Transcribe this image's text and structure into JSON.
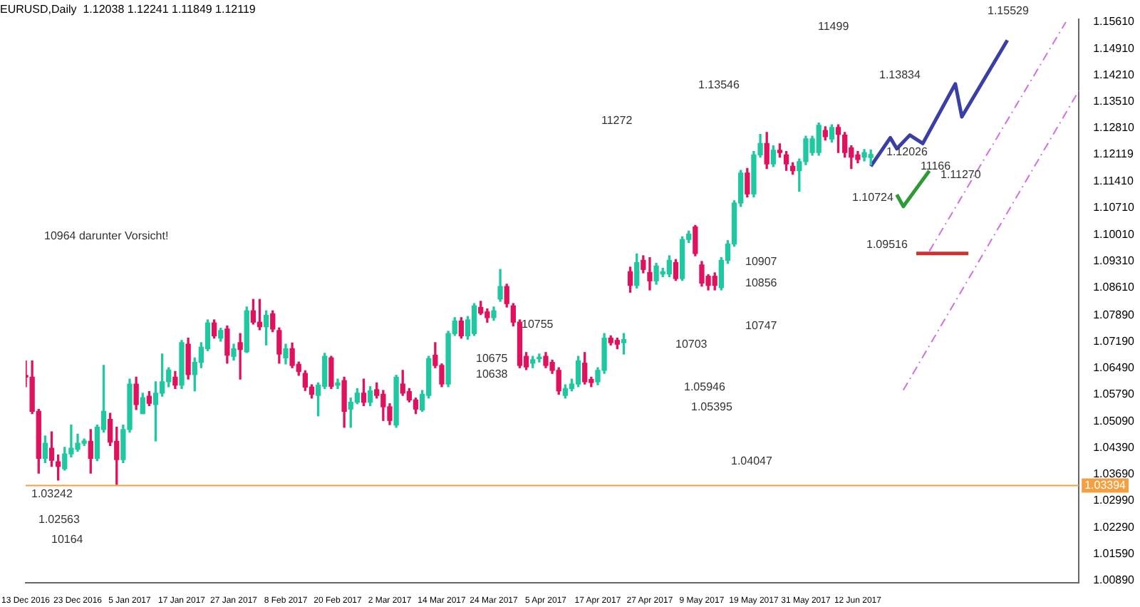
{
  "chart_data": {
    "type": "candlestick",
    "title": "EURUSD,Daily  1.12038 1.12241 1.11849 1.12119",
    "categories": [
      "13 Dec 2016",
      null,
      null,
      null,
      null,
      null,
      null,
      null,
      "23 Dec 2016",
      null,
      null,
      null,
      null,
      null,
      null,
      null,
      "5 Jan 2017",
      null,
      null,
      null,
      null,
      null,
      null,
      null,
      "17 Jan 2017",
      null,
      null,
      null,
      null,
      null,
      null,
      null,
      "27 Jan 2017",
      null,
      null,
      null,
      null,
      null,
      null,
      null,
      "8 Feb 2017",
      null,
      null,
      null,
      null,
      null,
      null,
      null,
      "20 Feb 2017",
      null,
      null,
      null,
      null,
      null,
      null,
      null,
      "2 Mar 2017",
      null,
      null,
      null,
      null,
      null,
      null,
      null,
      "14 Mar 2017",
      null,
      null,
      null,
      null,
      null,
      null,
      null,
      "24 Mar 2017",
      null,
      null,
      null,
      null,
      null,
      null,
      null,
      "5 Apr 2017",
      null,
      null,
      null,
      null,
      null,
      null,
      null,
      "17 Apr 2017",
      null,
      null,
      null,
      null,
      null,
      null,
      null,
      "27 Apr 2017",
      null,
      null,
      null,
      null,
      null,
      null,
      null,
      "9 May 2017",
      null,
      null,
      null,
      null,
      null,
      null,
      null,
      "19 May 2017",
      null,
      null,
      null,
      null,
      null,
      null,
      null,
      "31 May 2017",
      null,
      null,
      null,
      null,
      null,
      null,
      null,
      "12 Jun 2017",
      null,
      null,
      null,
      null,
      null,
      null,
      null,
      null,
      null,
      null,
      null,
      null,
      null,
      null,
      null,
      null,
      null,
      null,
      null,
      null,
      null,
      null,
      null,
      null,
      null,
      null,
      null,
      null,
      null,
      null,
      null,
      null,
      null,
      null
    ],
    "colors": [
      "#e0115f",
      "#e0115f",
      "#e0115f",
      "#1fc8a0",
      "#e0115f",
      "#e0115f",
      "#1fc8a0",
      "#1fc8a0",
      "#1fc8a0",
      "#1fc8a0",
      "#e0115f",
      "#1fc8a0",
      "#1fc8a0",
      "#e0115f",
      "#e0115f",
      "#1fc8a0",
      "#1fc8a0",
      "#e0115f",
      "#1fc8a0",
      "#e0115f",
      "#1fc8a0",
      "#1fc8a0",
      "#1fc8a0",
      "#e0115f",
      "#1fc8a0",
      "#e0115f",
      "#1fc8a0",
      "#1fc8a0",
      "#1fc8a0",
      "#e0115f",
      "#1fc8a0",
      "#e0115f",
      "#1fc8a0",
      "#e0115f",
      "#1fc8a0",
      "#e0115f",
      "#e0115f",
      "#1fc8a0",
      "#e0115f",
      "#e0115f",
      "#1fc8a0",
      "#e0115f",
      "#e0115f",
      "#e0115f",
      "#e0115f",
      "#1fc8a0",
      "#1fc8a0",
      "#e0115f",
      "#1fc8a0",
      "#e0115f",
      "#1fc8a0",
      "#1fc8a0",
      "#e0115f",
      "#1fc8a0",
      "#e0115f",
      "#e0115f",
      "#e0115f",
      "#1fc8a0",
      "#e0115f",
      "#e0115f",
      "#e0115f",
      "#1fc8a0",
      "#1fc8a0",
      "#e0115f",
      "#e0115f",
      "#1fc8a0",
      "#1fc8a0",
      "#e0115f",
      "#1fc8a0",
      "#1fc8a0",
      "#e0115f",
      "#e0115f",
      "#1fc8a0",
      "#1fc8a0",
      "#e0115f",
      "#e0115f",
      "#e0115f",
      "#e0115f",
      "#1fc8a0",
      "#1fc8a0",
      "#e0115f",
      "#e0115f",
      "#e0115f",
      "#1fc8a0",
      "#1fc8a0",
      "#1fc8a0",
      "#e0115f",
      "#e0115f",
      "#1fc8a0",
      "#1fc8a0",
      "#e0115f",
      "#e0115f",
      "#1fc8a0",
      "#e0115f",
      "#1fc8a0",
      "#e0115f",
      "#e0115f",
      "#1fc8a0",
      "#1fc8a0",
      "#1fc8a0",
      "#e0115f",
      "#1fc8a0",
      "#1fc8a0",
      "#e0115f",
      "#e0115f",
      "#e0115f",
      "#e0115f",
      "#1fc8a0",
      "#1fc8a0",
      "#1fc8a0",
      "#1fc8a0",
      "#e0115f",
      "#1fc8a0",
      "#1fc8a0",
      "#e0115f",
      "#1fc8a0",
      "#e0115f",
      "#e0115f",
      "#e0115f",
      "#1fc8a0",
      "#1fc8a0",
      "#1fc8a0",
      "#1fc8a0",
      "#e0115f",
      "#1fc8a0",
      "#e0115f",
      "#e0115f",
      "#e0115f",
      "#e0115f",
      "#1fc8a0",
      "#1fc8a0",
      null,
      null,
      null,
      null,
      null,
      null,
      null,
      null,
      null,
      null,
      null,
      null,
      null,
      null,
      null,
      null,
      null,
      null,
      null,
      null,
      null,
      null,
      null,
      null,
      null,
      null,
      null,
      null,
      null,
      null,
      null,
      null
    ],
    "ohlc": [
      [
        1.063,
        1.0668,
        1.06,
        1.0625
      ],
      [
        1.0625,
        1.0668,
        1.0529,
        1.0535
      ],
      [
        1.0535,
        1.054,
        1.0372,
        1.0411
      ],
      [
        1.0411,
        1.047,
        1.04,
        1.0451
      ],
      [
        1.0438,
        1.0481,
        1.039,
        1.0406
      ],
      [
        1.0402,
        1.042,
        1.0354,
        1.039
      ],
      [
        1.0384,
        1.044,
        1.038,
        1.0423
      ],
      [
        1.0423,
        1.0499,
        1.0415,
        1.0438
      ],
      [
        1.0435,
        1.0475,
        1.043,
        1.0451
      ],
      [
        1.0451,
        1.0462,
        1.0445,
        1.0457
      ],
      [
        1.0456,
        1.0487,
        1.0372,
        1.0411
      ],
      [
        1.0411,
        1.0499,
        1.0405,
        1.0493
      ],
      [
        1.0487,
        1.0656,
        1.048,
        1.0535
      ],
      [
        1.0514,
        1.053,
        1.0445,
        1.0454
      ],
      [
        1.0456,
        1.0493,
        1.0342,
        1.0408
      ],
      [
        1.0408,
        1.0499,
        1.04,
        1.0487
      ],
      [
        1.0487,
        1.062,
        1.048,
        1.0607
      ],
      [
        1.0607,
        1.0625,
        1.054,
        1.0553
      ],
      [
        1.0529,
        1.0583,
        1.0529,
        1.0571
      ],
      [
        1.0575,
        1.0587,
        1.055,
        1.0556
      ],
      [
        1.0553,
        1.0613,
        1.0457,
        1.0583
      ],
      [
        1.0583,
        1.0686,
        1.0575,
        1.0613
      ],
      [
        1.0613,
        1.065,
        1.06,
        1.0644
      ],
      [
        1.0625,
        1.064,
        1.0595,
        1.0604
      ],
      [
        1.0604,
        1.0722,
        1.0595,
        1.0716
      ],
      [
        1.0712,
        1.0728,
        1.062,
        1.0632
      ],
      [
        1.0632,
        1.0676,
        1.0589,
        1.0664
      ],
      [
        1.0664,
        1.0716,
        1.065,
        1.0704
      ],
      [
        1.07,
        1.0776,
        1.0695,
        1.0768
      ],
      [
        1.0768,
        1.0776,
        1.0728,
        1.0734
      ],
      [
        1.0728,
        1.0754,
        1.072,
        1.0748
      ],
      [
        1.0752,
        1.076,
        1.0662,
        1.0683
      ],
      [
        1.068,
        1.0712,
        1.067,
        1.07
      ],
      [
        1.0716,
        1.074,
        1.062,
        1.0698
      ],
      [
        1.0692,
        1.081,
        1.069,
        1.08
      ],
      [
        1.08,
        1.083,
        1.0765,
        1.077
      ],
      [
        1.077,
        1.083,
        1.075,
        1.0758
      ],
      [
        1.0758,
        1.08,
        1.071,
        1.0788
      ],
      [
        1.0792,
        1.08,
        1.0745,
        1.0752
      ],
      [
        1.0748,
        1.0755,
        1.0662,
        1.0686
      ],
      [
        1.0676,
        1.0712,
        1.066,
        1.07
      ],
      [
        1.07,
        1.0715,
        1.065,
        1.0656
      ],
      [
        1.0659,
        1.0665,
        1.063,
        1.064
      ],
      [
        1.0635,
        1.0642,
        1.059,
        1.0599
      ],
      [
        1.0599,
        1.0605,
        1.057,
        1.058
      ],
      [
        1.0577,
        1.061,
        1.0523,
        1.0604
      ],
      [
        1.0601,
        1.0688,
        1.0595,
        1.068
      ],
      [
        1.0676,
        1.068,
        1.0595,
        1.0601
      ],
      [
        1.0604,
        1.062,
        1.0595,
        1.061
      ],
      [
        1.0616,
        1.0625,
        1.0493,
        1.0535
      ],
      [
        1.0541,
        1.057,
        1.0493,
        1.0559
      ],
      [
        1.0559,
        1.0595,
        1.0555,
        1.0583
      ],
      [
        1.0583,
        1.062,
        1.055,
        1.0559
      ],
      [
        1.0559,
        1.06,
        1.055,
        1.0589
      ],
      [
        1.0592,
        1.061,
        1.057,
        1.0577
      ],
      [
        1.058,
        1.059,
        1.0511,
        1.0547
      ],
      [
        1.0547,
        1.0555,
        1.05,
        1.0511
      ],
      [
        1.0499,
        1.063,
        1.0493,
        1.0625
      ],
      [
        1.0607,
        1.0643,
        1.0577,
        1.0583
      ],
      [
        1.0587,
        1.0595,
        1.056,
        1.0565
      ],
      [
        1.0565,
        1.057,
        1.0529,
        1.0541
      ],
      [
        1.0539,
        1.059,
        1.0535,
        1.058
      ],
      [
        1.0577,
        1.068,
        1.057,
        1.0674
      ],
      [
        1.0683,
        1.0716,
        1.065,
        1.0656
      ],
      [
        1.0656,
        1.066,
        1.06,
        1.0607
      ],
      [
        1.0607,
        1.0746,
        1.06,
        1.074
      ],
      [
        1.074,
        1.0782,
        1.0735,
        1.0773
      ],
      [
        1.0773,
        1.0782,
        1.0728,
        1.0734
      ],
      [
        1.0734,
        1.0785,
        1.0725,
        1.0776
      ],
      [
        1.074,
        1.0819,
        1.0735,
        1.0813
      ],
      [
        1.0809,
        1.0825,
        1.079,
        1.0794
      ],
      [
        1.0797,
        1.0805,
        1.077,
        1.0782
      ],
      [
        1.0782,
        1.081,
        1.0775,
        1.08
      ],
      [
        1.0831,
        1.0909,
        1.0825,
        1.0864
      ],
      [
        1.0864,
        1.087,
        1.081,
        1.0819
      ],
      [
        1.0813,
        1.0819,
        1.076,
        1.077
      ],
      [
        1.077,
        1.0776,
        1.065,
        1.0656
      ],
      [
        1.068,
        1.069,
        1.0645,
        1.0652
      ],
      [
        1.0662,
        1.068,
        1.065,
        1.0671
      ],
      [
        1.0674,
        1.0686,
        1.0665,
        1.0677
      ],
      [
        1.068,
        1.069,
        1.065,
        1.0656
      ],
      [
        1.0664,
        1.067,
        1.0635,
        1.0643
      ],
      [
        1.0643,
        1.065,
        1.058,
        1.0589
      ],
      [
        1.0577,
        1.0605,
        1.057,
        1.0595
      ],
      [
        1.0595,
        1.062,
        1.0589,
        1.0607
      ],
      [
        1.0607,
        1.068,
        1.06,
        1.0668
      ],
      [
        1.0662,
        1.069,
        1.0607,
        1.0613
      ],
      [
        1.0619,
        1.0625,
        1.06,
        1.0611
      ],
      [
        1.0613,
        1.065,
        1.0605,
        1.0643
      ],
      [
        1.0643,
        1.074,
        1.0635,
        1.0728
      ],
      [
        1.0728,
        1.0734,
        1.071,
        1.0716
      ],
      [
        1.0722,
        1.0728,
        1.07,
        1.0712
      ],
      [
        1.0716,
        1.074,
        1.0686,
        1.0724
      ],
      [
        1.0903,
        1.0915,
        1.0849,
        1.0867
      ],
      [
        1.0867,
        1.095,
        1.086,
        1.0927
      ],
      [
        1.0933,
        1.0945,
        1.09,
        1.0909
      ],
      [
        1.0901,
        1.094,
        1.0855,
        1.0879
      ],
      [
        1.0879,
        1.0925,
        1.087,
        1.0918
      ],
      [
        1.0897,
        1.0912,
        1.089,
        1.0903
      ],
      [
        1.0897,
        1.0945,
        1.089,
        1.0933
      ],
      [
        1.0927,
        1.0935,
        1.088,
        1.0885
      ],
      [
        1.0885,
        1.0995,
        1.088,
        1.0988
      ],
      [
        1.0988,
        1.101,
        1.098,
        1.1002
      ],
      [
        1.1021,
        1.1025,
        1.0945,
        1.0951
      ],
      [
        1.0921,
        1.093,
        1.0865,
        1.0873
      ],
      [
        1.0891,
        1.0895,
        1.0855,
        1.0867
      ],
      [
        1.0891,
        1.09,
        1.0855,
        1.0867
      ],
      [
        1.0861,
        1.094,
        1.0855,
        1.0933
      ],
      [
        1.0933,
        1.0985,
        1.0925,
        1.0976
      ],
      [
        1.0976,
        1.109,
        1.097,
        1.1084
      ],
      [
        1.1084,
        1.117,
        1.1075,
        1.1163
      ],
      [
        1.1163,
        1.1175,
        1.11,
        1.1108
      ],
      [
        1.1108,
        1.122,
        1.11,
        1.1211
      ],
      [
        1.1211,
        1.1265,
        1.1205,
        1.1241
      ],
      [
        1.1241,
        1.127,
        1.1175,
        1.1187
      ],
      [
        1.1187,
        1.1235,
        1.118,
        1.1223
      ],
      [
        1.1223,
        1.124,
        1.1205,
        1.1217
      ],
      [
        1.1211,
        1.122,
        1.117,
        1.1187
      ],
      [
        1.1181,
        1.119,
        1.116,
        1.1169
      ],
      [
        1.1169,
        1.12,
        1.1115,
        1.1193
      ],
      [
        1.1193,
        1.126,
        1.1185,
        1.1253
      ],
      [
        1.1217,
        1.126,
        1.121,
        1.1253
      ],
      [
        1.1217,
        1.1295,
        1.121,
        1.1289
      ],
      [
        1.1275,
        1.1285,
        1.125,
        1.1259
      ],
      [
        1.1253,
        1.129,
        1.1245,
        1.1283
      ],
      [
        1.1283,
        1.129,
        1.1217,
        1.1265
      ],
      [
        1.1263,
        1.127,
        1.1205,
        1.1217
      ],
      [
        1.1229,
        1.1235,
        1.1175,
        1.1205
      ],
      [
        1.1211,
        1.122,
        1.119,
        1.1199
      ],
      [
        1.1205,
        1.1225,
        1.1195,
        1.1217
      ],
      [
        1.12038,
        1.12241,
        1.11849,
        1.12119
      ],
      null,
      null,
      null,
      null,
      null,
      null,
      null,
      null,
      null,
      null,
      null,
      null,
      null,
      null,
      null,
      null,
      null,
      null,
      null,
      null,
      null,
      null,
      null,
      null,
      null,
      null,
      null,
      null,
      null,
      null,
      null,
      null
    ],
    "series": [
      {
        "type": "line",
        "color": "#3a3fa6",
        "values": [
          null,
          null,
          null,
          null,
          null,
          null,
          null,
          null,
          null,
          null,
          null,
          null,
          null,
          null,
          null,
          null,
          null,
          null,
          null,
          null,
          null,
          null,
          null,
          null,
          null,
          null,
          null,
          null,
          null,
          null,
          null,
          null,
          null,
          null,
          null,
          null,
          null,
          null,
          null,
          null,
          null,
          null,
          null,
          null,
          null,
          null,
          null,
          null,
          null,
          null,
          null,
          null,
          null,
          null,
          null,
          null,
          null,
          null,
          null,
          null,
          null,
          null,
          null,
          null,
          null,
          null,
          null,
          null,
          null,
          null,
          null,
          null,
          null,
          null,
          null,
          null,
          null,
          null,
          null,
          null,
          null,
          null,
          null,
          null,
          null,
          null,
          null,
          null,
          null,
          null,
          null,
          null,
          null,
          null,
          null,
          null,
          null,
          null,
          null,
          null,
          null,
          null,
          null,
          null,
          null,
          null,
          null,
          null,
          null,
          null,
          null,
          null,
          null,
          null,
          null,
          null,
          null,
          null,
          null,
          null,
          null,
          null,
          null,
          null,
          null,
          null,
          null,
          null,
          null,
          null,
          1.1181,
          null,
          null,
          1.1256,
          1.1227,
          null,
          1.1263,
          null,
          1.1241,
          null,
          null,
          null,
          null,
          1.1398,
          1.1311,
          null,
          null,
          null,
          null,
          null,
          null,
          1.1513,
          null,
          null,
          null,
          null,
          null,
          null,
          null,
          null,
          null,
          null,
          null
        ]
      },
      {
        "type": "line",
        "color": "#2e9a35",
        "values": [
          null,
          null,
          null,
          null,
          null,
          null,
          null,
          null,
          null,
          null,
          null,
          null,
          null,
          null,
          null,
          null,
          null,
          null,
          null,
          null,
          null,
          null,
          null,
          null,
          null,
          null,
          null,
          null,
          null,
          null,
          null,
          null,
          null,
          null,
          null,
          null,
          null,
          null,
          null,
          null,
          null,
          null,
          null,
          null,
          null,
          null,
          null,
          null,
          null,
          null,
          null,
          null,
          null,
          null,
          null,
          null,
          null,
          null,
          null,
          null,
          null,
          null,
          null,
          null,
          null,
          null,
          null,
          null,
          null,
          null,
          null,
          null,
          null,
          null,
          null,
          null,
          null,
          null,
          null,
          null,
          null,
          null,
          null,
          null,
          null,
          null,
          null,
          null,
          null,
          null,
          null,
          null,
          null,
          null,
          null,
          null,
          null,
          null,
          null,
          null,
          null,
          null,
          null,
          null,
          null,
          null,
          null,
          null,
          null,
          null,
          null,
          null,
          null,
          null,
          null,
          null,
          null,
          null,
          null,
          null,
          null,
          null,
          null,
          null,
          null,
          null,
          null,
          null,
          null,
          null,
          null,
          null,
          null,
          null,
          1.1106,
          1.1075,
          null,
          null,
          null,
          1.1169,
          null,
          null,
          null,
          null,
          null,
          null,
          null,
          null,
          null,
          null,
          null,
          null,
          null,
          null,
          null,
          null,
          null,
          null,
          null,
          null,
          null,
          null,
          null
        ]
      },
      {
        "type": "line",
        "color": "#d03030",
        "values": [
          null,
          null,
          null,
          null,
          null,
          null,
          null,
          null,
          null,
          null,
          null,
          null,
          null,
          null,
          null,
          null,
          null,
          null,
          null,
          null,
          null,
          null,
          null,
          null,
          null,
          null,
          null,
          null,
          null,
          null,
          null,
          null,
          null,
          null,
          null,
          null,
          null,
          null,
          null,
          null,
          null,
          null,
          null,
          null,
          null,
          null,
          null,
          null,
          null,
          null,
          null,
          null,
          null,
          null,
          null,
          null,
          null,
          null,
          null,
          null,
          null,
          null,
          null,
          null,
          null,
          null,
          null,
          null,
          null,
          null,
          null,
          null,
          null,
          null,
          null,
          null,
          null,
          null,
          null,
          null,
          null,
          null,
          null,
          null,
          null,
          null,
          null,
          null,
          null,
          null,
          null,
          null,
          null,
          null,
          null,
          null,
          null,
          null,
          null,
          null,
          null,
          null,
          null,
          null,
          null,
          null,
          null,
          null,
          null,
          null,
          null,
          null,
          null,
          null,
          null,
          null,
          null,
          null,
          null,
          null,
          null,
          null,
          null,
          null,
          null,
          null,
          null,
          null,
          null,
          null,
          null,
          null,
          null,
          null,
          null,
          null,
          null,
          1.0951,
          null,
          null,
          null,
          null,
          null,
          null,
          null,
          1.0951,
          null,
          null,
          null,
          null,
          null,
          null,
          null,
          null,
          null,
          null,
          null,
          null,
          null,
          null,
          null,
          null,
          null
        ]
      },
      {
        "type": "line",
        "color": "#d070e0",
        "line_style": "dashed",
        "values": [
          null,
          null,
          null,
          null,
          null,
          null,
          null,
          null,
          null,
          null,
          null,
          null,
          null,
          null,
          null,
          null,
          null,
          null,
          null,
          null,
          null,
          null,
          null,
          null,
          null,
          null,
          null,
          null,
          null,
          null,
          null,
          null,
          null,
          null,
          null,
          null,
          null,
          null,
          null,
          null,
          null,
          null,
          null,
          null,
          null,
          null,
          null,
          null,
          null,
          null,
          null,
          null,
          null,
          null,
          null,
          null,
          null,
          null,
          null,
          null,
          null,
          null,
          null,
          null,
          null,
          null,
          null,
          null,
          null,
          null,
          null,
          null,
          null,
          null,
          null,
          null,
          null,
          null,
          null,
          null,
          null,
          null,
          null,
          null,
          null,
          null,
          null,
          null,
          null,
          null,
          null,
          null,
          null,
          null,
          null,
          null,
          null,
          null,
          null,
          null,
          null,
          null,
          null,
          null,
          null,
          null,
          null,
          null,
          null,
          null,
          null,
          null,
          null,
          null,
          null,
          null,
          null,
          null,
          null,
          null,
          null,
          null,
          null,
          null,
          null,
          null,
          null,
          null,
          null,
          null,
          null,
          null,
          null,
          null,
          null,
          null,
          null,
          null,
          null,
          1.0957,
          null,
          null,
          null,
          null,
          null,
          null,
          null,
          null,
          null,
          null,
          null,
          null,
          null,
          null,
          null,
          null,
          null,
          null,
          null,
          null,
          1.1561,
          null,
          null
        ]
      },
      {
        "type": "line",
        "color": "#d070e0",
        "line_style": "dashed",
        "values": [
          null,
          null,
          null,
          null,
          null,
          null,
          null,
          null,
          null,
          null,
          null,
          null,
          null,
          null,
          null,
          null,
          null,
          null,
          null,
          null,
          null,
          null,
          null,
          null,
          null,
          null,
          null,
          null,
          null,
          null,
          null,
          null,
          null,
          null,
          null,
          null,
          null,
          null,
          null,
          null,
          null,
          null,
          null,
          null,
          null,
          null,
          null,
          null,
          null,
          null,
          null,
          null,
          null,
          null,
          null,
          null,
          null,
          null,
          null,
          null,
          null,
          null,
          null,
          null,
          null,
          null,
          null,
          null,
          null,
          null,
          null,
          null,
          null,
          null,
          null,
          null,
          null,
          null,
          null,
          null,
          null,
          null,
          null,
          null,
          null,
          null,
          null,
          null,
          null,
          null,
          null,
          null,
          null,
          null,
          null,
          null,
          null,
          null,
          null,
          null,
          null,
          null,
          null,
          null,
          null,
          null,
          null,
          null,
          null,
          null,
          null,
          null,
          null,
          null,
          null,
          null,
          null,
          null,
          null,
          null,
          null,
          null,
          null,
          null,
          null,
          null,
          null,
          null,
          null,
          null,
          null,
          null,
          null,
          null,
          null,
          1.0591,
          null,
          null,
          null,
          null,
          null,
          null,
          null,
          null,
          null,
          null,
          null,
          null,
          null,
          null,
          null,
          null,
          null,
          null,
          null,
          null,
          null,
          null,
          null,
          null,
          null,
          null,
          1.138
        ]
      }
    ],
    "ref_lines": [
      {
        "axis": "y",
        "value": 1.03394,
        "label": "1.03394",
        "color": "#f5a040"
      }
    ],
    "annotations": [
      "1.15529",
      "1.13834",
      "1.13546",
      "1.12026",
      "1.11270",
      "1.10724",
      "1.09516",
      "1.05946",
      "1.05395",
      "1.04047",
      "1.03242",
      "1.02563",
      "11499",
      "11272",
      "10964 darunter Vorsicht!",
      "10164",
      "10907",
      "10856",
      "10747",
      "10755",
      "10703",
      "10675",
      "10638",
      "11166"
    ],
    "ylim": [
      1.0084,
      1.1568
    ],
    "yticks": [
      {
        "value": 1.1561,
        "label": "1.15610"
      },
      {
        "value": 1.1491,
        "label": "1.14910"
      },
      {
        "value": 1.1421,
        "label": "1.14210"
      },
      {
        "value": 1.1351,
        "label": "1.13510"
      },
      {
        "value": 1.1281,
        "label": "1.12810"
      },
      {
        "value": 1.12119,
        "label": "1.12119"
      },
      {
        "value": 1.1141,
        "label": "1.11410"
      },
      {
        "value": 1.1071,
        "label": "1.10710"
      },
      {
        "value": 1.1001,
        "label": "1.10010"
      },
      {
        "value": 1.0931,
        "label": "1.09310"
      },
      {
        "value": 1.0861,
        "label": "1.08610"
      },
      {
        "value": 1.0789,
        "label": "1.07890"
      },
      {
        "value": 1.0719,
        "label": "1.07190"
      },
      {
        "value": 1.0649,
        "label": "1.06490"
      },
      {
        "value": 1.0579,
        "label": "1.05790"
      },
      {
        "value": 1.0509,
        "label": "1.05090"
      },
      {
        "value": 1.0439,
        "label": "1.04390"
      },
      {
        "value": 1.0369,
        "label": "1.03690"
      },
      {
        "value": 1.0299,
        "label": "1.02990"
      },
      {
        "value": 1.0229,
        "label": "1.02290"
      },
      {
        "value": 1.0159,
        "label": "1.01590"
      },
      {
        "value": 1.0089,
        "label": "1.00890"
      }
    ],
    "grid": false,
    "legend": false
  }
}
